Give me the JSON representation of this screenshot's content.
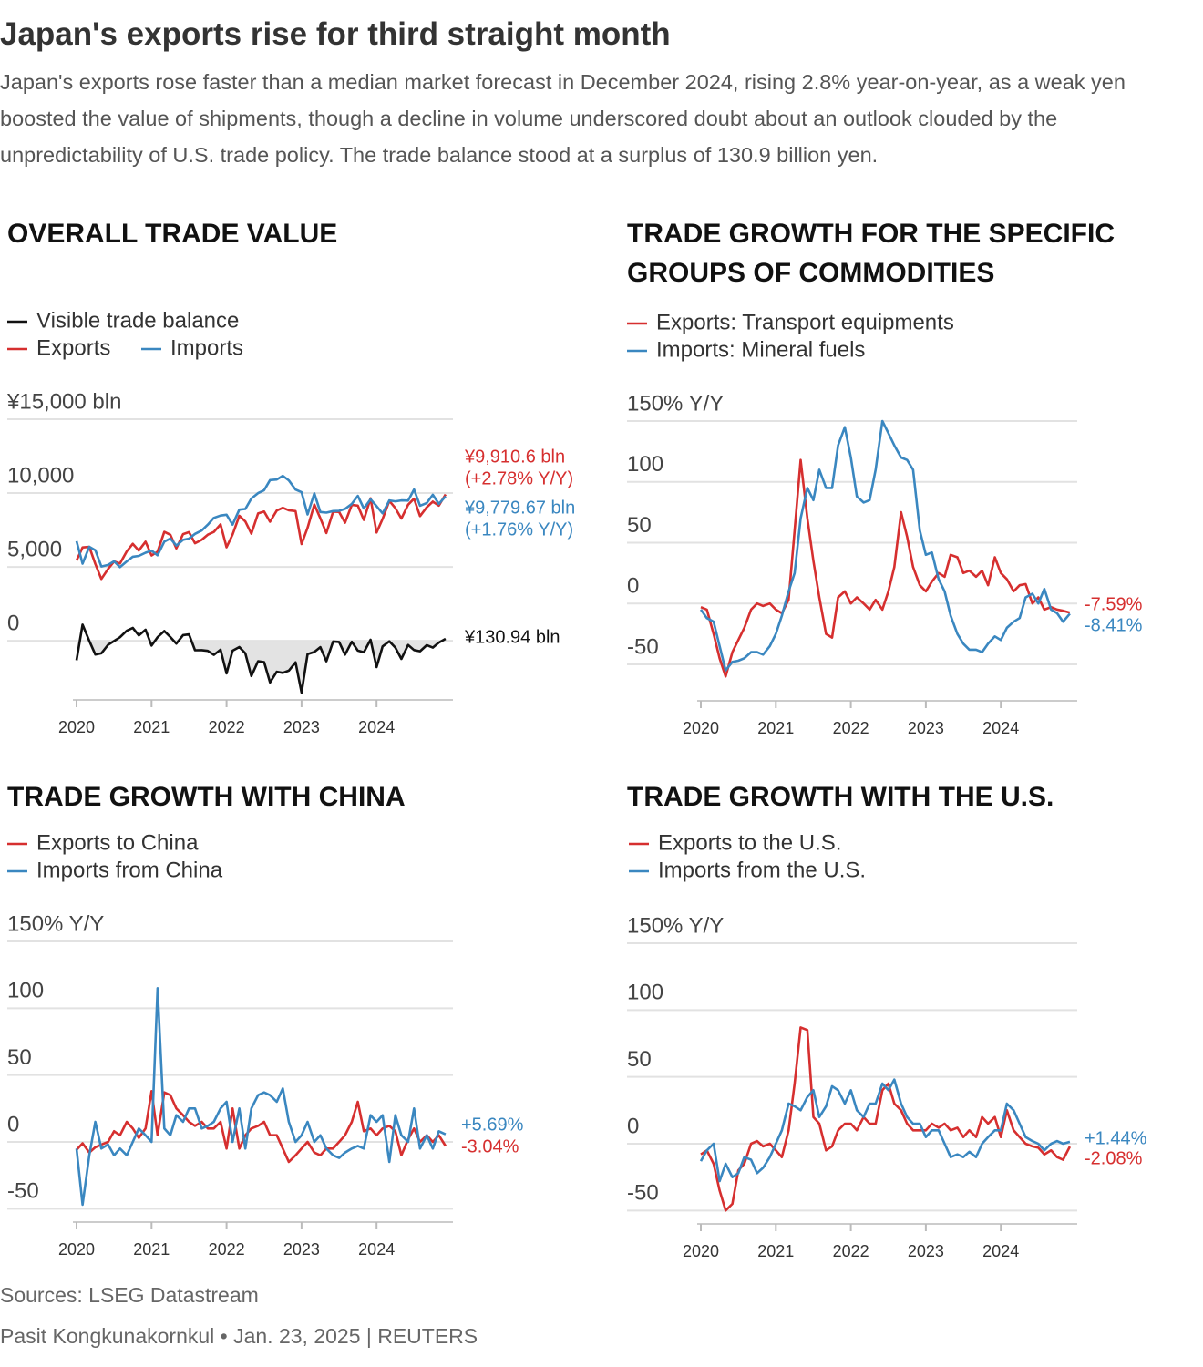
{
  "title": "Japan's exports rise for third straight month",
  "subtitle": "Japan's exports rose faster than a median market forecast in December 2024, rising 2.8% year-on-year, as a weak yen boosted the value of shipments, though a decline in volume underscored doubt about an outlook clouded by the unpredictability of U.S. trade policy. The trade balance stood at a surplus of 130.9 billion yen.",
  "source": "Sources: LSEG Datastream",
  "credit": "Pasit Kongkunakornkul • Jan. 23, 2025 | REUTERS",
  "chart_data": [
    {
      "type": "line",
      "title": "OVERALL TRADE VALUE",
      "x": [
        2020,
        2020.08,
        2020.17,
        2020.25,
        2020.33,
        2020.42,
        2020.5,
        2020.58,
        2020.67,
        2020.75,
        2020.83,
        2020.92,
        2021,
        2021.08,
        2021.17,
        2021.25,
        2021.33,
        2021.42,
        2021.5,
        2021.58,
        2021.67,
        2021.75,
        2021.83,
        2021.92,
        2022,
        2022.08,
        2022.17,
        2022.25,
        2022.33,
        2022.42,
        2022.5,
        2022.58,
        2022.67,
        2022.75,
        2022.83,
        2022.92,
        2023,
        2023.08,
        2023.17,
        2023.25,
        2023.33,
        2023.42,
        2023.5,
        2023.58,
        2023.67,
        2023.75,
        2023.83,
        2023.92,
        2024,
        2024.08,
        2024.17,
        2024.25,
        2024.33,
        2024.42,
        2024.5,
        2024.58,
        2024.67,
        2024.75,
        2024.83,
        2024.92
      ],
      "xlim": [
        2020,
        2024.92
      ],
      "xticks": [
        2020,
        2021,
        2022,
        2023,
        2024
      ],
      "ylim": [
        -4000,
        15000
      ],
      "yticks": [
        0,
        {
          "value": 5000,
          "label": "5,000"
        },
        {
          "value": 10000,
          "label": "10,000"
        },
        {
          "value": 15000,
          "label": "¥15,000 bln"
        }
      ],
      "grid": true,
      "series": [
        {
          "name": "Visible trade balance",
          "color": "#111111",
          "fill_below_zero": "#e3e3e3",
          "end_label": [
            "¥130.94 bln"
          ],
          "values": [
            -1316,
            1095,
            -5,
            -931,
            -846,
            -269,
            -16,
            246,
            681,
            873,
            367,
            750,
            -325,
            244,
            662,
            259,
            -186,
            388,
            435,
            -637,
            -631,
            -680,
            -953,
            -601,
            -2206,
            -669,
            -419,
            -849,
            -2385,
            -1379,
            -1443,
            -2818,
            -2095,
            -2166,
            -2020,
            -1458,
            -3508,
            -898,
            -756,
            -427,
            -1383,
            -43,
            -74,
            -937,
            -67,
            -662,
            -778,
            70,
            -1779,
            -379,
            -33,
            -462,
            -1226,
            -278,
            -628,
            -705,
            -295,
            -462,
            -117,
            130.94
          ]
        },
        {
          "name": "Exports",
          "color": "#d62f2f",
          "end_label": [
            "¥9,910.6 bln",
            "(+2.78% Y/Y)"
          ],
          "values": [
            5432,
            6320,
            6358,
            5206,
            4185,
            4866,
            5369,
            5233,
            6055,
            6566,
            6113,
            6710,
            5779,
            6036,
            7378,
            7181,
            6261,
            7220,
            7356,
            6604,
            6838,
            7184,
            7367,
            7880,
            6331,
            7191,
            8461,
            8076,
            7251,
            8620,
            8751,
            8062,
            8819,
            9002,
            8838,
            8779,
            6551,
            7653,
            9225,
            8294,
            7293,
            8739,
            8724,
            7993,
            9204,
            9150,
            8181,
            9648,
            7333,
            8249,
            9470,
            8981,
            8276,
            9212,
            9618,
            8441,
            9038,
            9424,
            9151,
            9910.6
          ]
        },
        {
          "name": "Imports",
          "color": "#3a87c0",
          "end_label": [
            "¥9,779.67 bln",
            "(+1.76% Y/Y)"
          ],
          "values": [
            6748,
            5225,
            6363,
            6137,
            5031,
            5135,
            5385,
            4987,
            5374,
            5693,
            5746,
            5960,
            6104,
            5792,
            6716,
            6922,
            6447,
            6832,
            6921,
            7241,
            7469,
            7864,
            8320,
            8481,
            8537,
            7860,
            8880,
            8925,
            9636,
            9999,
            10194,
            10880,
            10914,
            11168,
            10858,
            10237,
            10059,
            8551,
            9981,
            8721,
            8676,
            8782,
            8798,
            8930,
            9271,
            9812,
            8959,
            9578,
            9112,
            8628,
            9503,
            9443,
            9502,
            9490,
            10246,
            9146,
            9333,
            9886,
            9268,
            9779.67
          ]
        }
      ]
    },
    {
      "type": "line",
      "title": "TRADE GROWTH FOR THE SPECIFIC GROUPS OF COMMODITIES",
      "x": [
        2020,
        2020.08,
        2020.17,
        2020.25,
        2020.33,
        2020.42,
        2020.5,
        2020.58,
        2020.67,
        2020.75,
        2020.83,
        2020.92,
        2021,
        2021.08,
        2021.17,
        2021.25,
        2021.33,
        2021.42,
        2021.5,
        2021.58,
        2021.67,
        2021.75,
        2021.83,
        2021.92,
        2022,
        2022.08,
        2022.17,
        2022.25,
        2022.33,
        2022.42,
        2022.5,
        2022.58,
        2022.67,
        2022.75,
        2022.83,
        2022.92,
        2023,
        2023.08,
        2023.17,
        2023.25,
        2023.33,
        2023.42,
        2023.5,
        2023.58,
        2023.67,
        2023.75,
        2023.83,
        2023.92,
        2024,
        2024.08,
        2024.17,
        2024.25,
        2024.33,
        2024.42,
        2024.5,
        2024.58,
        2024.67,
        2024.75,
        2024.83,
        2024.92
      ],
      "xlim": [
        2020,
        2024.92
      ],
      "xticks": [
        2020,
        2021,
        2022,
        2023,
        2024
      ],
      "ylim": [
        -80,
        150
      ],
      "yticks": [
        -50,
        0,
        50,
        100,
        {
          "value": 150,
          "label": "150% Y/Y"
        }
      ],
      "grid": true,
      "series": [
        {
          "name": "Exports: Transport equipments",
          "color": "#d62f2f",
          "end_label": [
            "-7.59%"
          ],
          "values": [
            -3,
            -5,
            -25,
            -45,
            -60,
            -40,
            -30,
            -20,
            -5,
            0,
            -2,
            0,
            -5,
            -8,
            3,
            60,
            118,
            70,
            35,
            5,
            -25,
            -28,
            5,
            10,
            0,
            5,
            0,
            -5,
            3,
            -5,
            10,
            30,
            75,
            55,
            30,
            15,
            10,
            18,
            25,
            22,
            40,
            38,
            25,
            27,
            22,
            27,
            15,
            38,
            25,
            20,
            10,
            15,
            16,
            0,
            5,
            -5,
            -3,
            -5,
            -6,
            -7.59
          ]
        },
        {
          "name": "Imports: Mineral fuels",
          "color": "#3a87c0",
          "end_label": [
            "-8.41%"
          ],
          "values": [
            -5,
            -12,
            -15,
            -35,
            -55,
            -48,
            -47,
            -45,
            -40,
            -40,
            -42,
            -35,
            -25,
            -10,
            10,
            25,
            70,
            95,
            85,
            110,
            95,
            95,
            130,
            145,
            120,
            88,
            83,
            85,
            110,
            150,
            140,
            130,
            120,
            118,
            110,
            60,
            40,
            42,
            20,
            10,
            -10,
            -25,
            -33,
            -38,
            -38,
            -40,
            -33,
            -27,
            -30,
            -20,
            -15,
            -12,
            5,
            8,
            0,
            12,
            -5,
            -8,
            -15,
            -8.41
          ]
        }
      ]
    },
    {
      "type": "line",
      "title": "TRADE GROWTH WITH CHINA",
      "x": [
        2020,
        2020.08,
        2020.17,
        2020.25,
        2020.33,
        2020.42,
        2020.5,
        2020.58,
        2020.67,
        2020.75,
        2020.83,
        2020.92,
        2021,
        2021.08,
        2021.17,
        2021.25,
        2021.33,
        2021.42,
        2021.5,
        2021.58,
        2021.67,
        2021.75,
        2021.83,
        2021.92,
        2022,
        2022.08,
        2022.17,
        2022.25,
        2022.33,
        2022.42,
        2022.5,
        2022.58,
        2022.67,
        2022.75,
        2022.83,
        2022.92,
        2023,
        2023.08,
        2023.17,
        2023.25,
        2023.33,
        2023.42,
        2023.5,
        2023.58,
        2023.67,
        2023.75,
        2023.83,
        2023.92,
        2024,
        2024.08,
        2024.17,
        2024.25,
        2024.33,
        2024.42,
        2024.5,
        2024.58,
        2024.67,
        2024.75,
        2024.83,
        2024.92
      ],
      "xlim": [
        2020,
        2024.92
      ],
      "xticks": [
        2020,
        2021,
        2022,
        2023,
        2024
      ],
      "ylim": [
        -60,
        150
      ],
      "yticks": [
        -50,
        0,
        50,
        100,
        {
          "value": 150,
          "label": "150% Y/Y"
        }
      ],
      "grid": true,
      "series": [
        {
          "name": "Exports to China",
          "color": "#d62f2f",
          "end_label": [
            "-3.04%"
          ],
          "values": [
            -6,
            -1,
            -8,
            -4,
            -2,
            0,
            8,
            5,
            15,
            10,
            3,
            10,
            38,
            5,
            37,
            35,
            25,
            20,
            15,
            12,
            15,
            10,
            10,
            15,
            -5,
            25,
            -5,
            5,
            10,
            12,
            15,
            5,
            5,
            -5,
            -15,
            -10,
            -5,
            0,
            -8,
            -10,
            -5,
            -5,
            0,
            5,
            15,
            30,
            8,
            10,
            5,
            10,
            12,
            8,
            -10,
            2,
            10,
            0,
            5,
            0,
            5,
            -3.04
          ]
        },
        {
          "name": "Imports from China",
          "color": "#3a87c0",
          "end_label": [
            "+5.69%"
          ],
          "values": [
            -5,
            -47,
            -10,
            15,
            -5,
            -2,
            -10,
            -5,
            -10,
            0,
            10,
            5,
            0,
            115,
            10,
            5,
            20,
            15,
            25,
            25,
            10,
            12,
            15,
            25,
            30,
            0,
            25,
            -5,
            25,
            35,
            37,
            35,
            30,
            40,
            15,
            0,
            5,
            15,
            0,
            5,
            -5,
            -10,
            -12,
            -8,
            -5,
            -3,
            -5,
            20,
            15,
            20,
            -15,
            20,
            5,
            0,
            25,
            -5,
            5,
            -5,
            8,
            5.69
          ]
        }
      ]
    },
    {
      "type": "line",
      "title": "TRADE GROWTH WITH THE U.S.",
      "x": [
        2020,
        2020.08,
        2020.17,
        2020.25,
        2020.33,
        2020.42,
        2020.5,
        2020.58,
        2020.67,
        2020.75,
        2020.83,
        2020.92,
        2021,
        2021.08,
        2021.17,
        2021.25,
        2021.33,
        2021.42,
        2021.5,
        2021.58,
        2021.67,
        2021.75,
        2021.83,
        2021.92,
        2022,
        2022.08,
        2022.17,
        2022.25,
        2022.33,
        2022.42,
        2022.5,
        2022.58,
        2022.67,
        2022.75,
        2022.83,
        2022.92,
        2023,
        2023.08,
        2023.17,
        2023.25,
        2023.33,
        2023.42,
        2023.5,
        2023.58,
        2023.67,
        2023.75,
        2023.83,
        2023.92,
        2024,
        2024.08,
        2024.17,
        2024.25,
        2024.33,
        2024.42,
        2024.5,
        2024.58,
        2024.67,
        2024.75,
        2024.83,
        2024.92
      ],
      "xlim": [
        2020,
        2024.92
      ],
      "xticks": [
        2020,
        2021,
        2022,
        2023,
        2024
      ],
      "ylim": [
        -60,
        150
      ],
      "yticks": [
        -50,
        0,
        50,
        100,
        {
          "value": 150,
          "label": "150% Y/Y"
        }
      ],
      "grid": true,
      "series": [
        {
          "name": "Exports to the U.S.",
          "color": "#d62f2f",
          "end_label": [
            "-2.08%"
          ],
          "values": [
            -8,
            -5,
            -15,
            -35,
            -50,
            -45,
            -20,
            -15,
            0,
            2,
            -2,
            0,
            -5,
            -10,
            10,
            45,
            87,
            85,
            20,
            15,
            -5,
            -2,
            10,
            15,
            15,
            10,
            20,
            15,
            15,
            40,
            45,
            30,
            25,
            15,
            10,
            10,
            10,
            15,
            12,
            15,
            10,
            12,
            5,
            10,
            5,
            20,
            15,
            20,
            5,
            25,
            10,
            5,
            0,
            -2,
            -3,
            -8,
            -5,
            -10,
            -12,
            -2.08
          ]
        },
        {
          "name": "Imports from the U.S.",
          "color": "#3a87c0",
          "end_label": [
            "+1.44%"
          ],
          "values": [
            -13,
            -5,
            0,
            -28,
            -15,
            -25,
            -22,
            -10,
            -12,
            -22,
            -18,
            -10,
            0,
            10,
            30,
            28,
            25,
            35,
            40,
            20,
            28,
            43,
            40,
            30,
            40,
            25,
            20,
            30,
            30,
            45,
            40,
            48,
            30,
            20,
            15,
            15,
            5,
            10,
            10,
            0,
            -10,
            -8,
            -10,
            -6,
            -10,
            0,
            5,
            10,
            10,
            30,
            25,
            15,
            5,
            2,
            0,
            -5,
            0,
            2,
            0,
            1.44
          ]
        }
      ]
    }
  ]
}
